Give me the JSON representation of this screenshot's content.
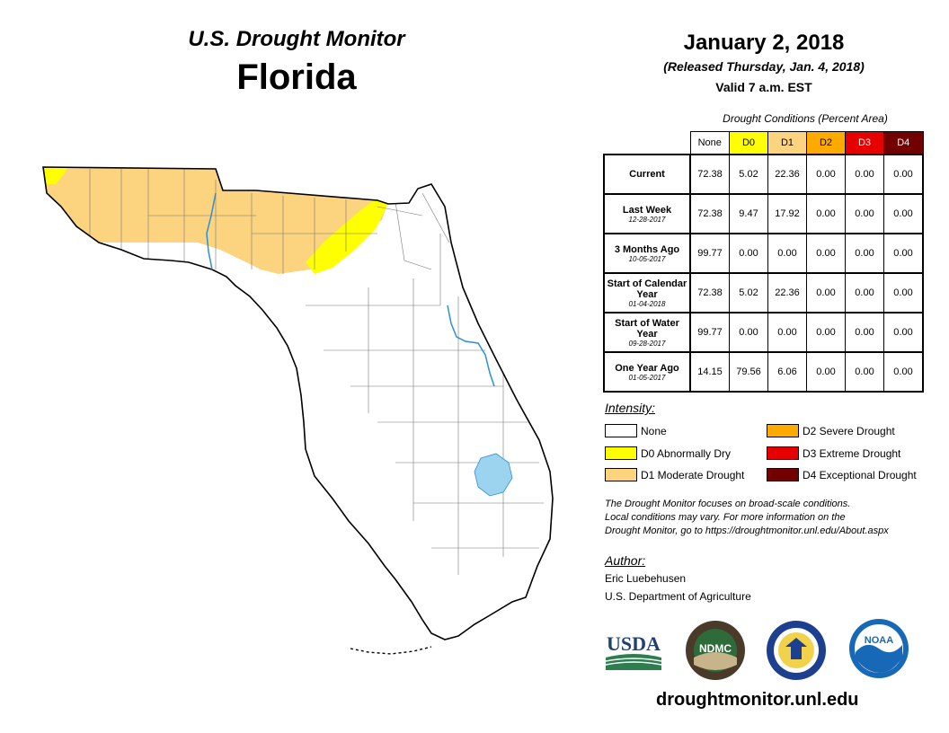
{
  "header": {
    "title": "U.S. Drought Monitor",
    "state": "Florida",
    "date": "January 2, 2018",
    "released": "(Released Thursday, Jan. 4, 2018)",
    "valid": "Valid 7 a.m. EST"
  },
  "conditions": {
    "title": "Drought Conditions (Percent Area)",
    "columns": [
      "None",
      "D0",
      "D1",
      "D2",
      "D3",
      "D4"
    ],
    "rows": [
      {
        "label": "Current",
        "sub": "",
        "values": [
          "72.38",
          "5.02",
          "22.36",
          "0.00",
          "0.00",
          "0.00"
        ]
      },
      {
        "label": "Last Week",
        "sub": "12-28-2017",
        "values": [
          "72.38",
          "9.47",
          "17.92",
          "0.00",
          "0.00",
          "0.00"
        ]
      },
      {
        "label": "3 Months Ago",
        "sub": "10-05-2017",
        "values": [
          "99.77",
          "0.00",
          "0.00",
          "0.00",
          "0.00",
          "0.00"
        ]
      },
      {
        "label": "Start of Calendar Year",
        "sub": "01-04-2018",
        "values": [
          "72.38",
          "5.02",
          "22.36",
          "0.00",
          "0.00",
          "0.00"
        ]
      },
      {
        "label": "Start of Water Year",
        "sub": "09-28-2017",
        "values": [
          "99.77",
          "0.00",
          "0.00",
          "0.00",
          "0.00",
          "0.00"
        ]
      },
      {
        "label": "One Year Ago",
        "sub": "01-05-2017",
        "values": [
          "14.15",
          "79.56",
          "6.06",
          "0.00",
          "0.00",
          "0.00"
        ]
      }
    ]
  },
  "legend": {
    "title": "Intensity:",
    "items": [
      {
        "label": "None",
        "color": "#ffffff"
      },
      {
        "label": "D0 Abnormally Dry",
        "color": "#ffff00"
      },
      {
        "label": "D1 Moderate Drought",
        "color": "#fcd37f"
      },
      {
        "label": "D2 Severe Drought",
        "color": "#ffaa00"
      },
      {
        "label": "D3 Extreme Drought",
        "color": "#e60000"
      },
      {
        "label": "D4 Exceptional Drought",
        "color": "#730000"
      }
    ]
  },
  "note": {
    "line1": "The Drought Monitor focuses on broad-scale conditions.",
    "line2": "Local conditions may vary. For more information on the",
    "line3": "Drought Monitor, go to https://droughtmonitor.unl.edu/About.aspx"
  },
  "author": {
    "label": "Author:",
    "name": "Eric Luebehusen",
    "org": "U.S. Department of Agriculture"
  },
  "logos": {
    "usda": "USDA",
    "ndmc": "NDMC",
    "noaa": "NOAA"
  },
  "footer": {
    "url": "droughtmonitor.unl.edu"
  },
  "colors": {
    "none": "#ffffff",
    "d0": "#ffff00",
    "d1": "#fcd37f",
    "water": "#9cd4f0",
    "river": "#2b8fd6"
  }
}
